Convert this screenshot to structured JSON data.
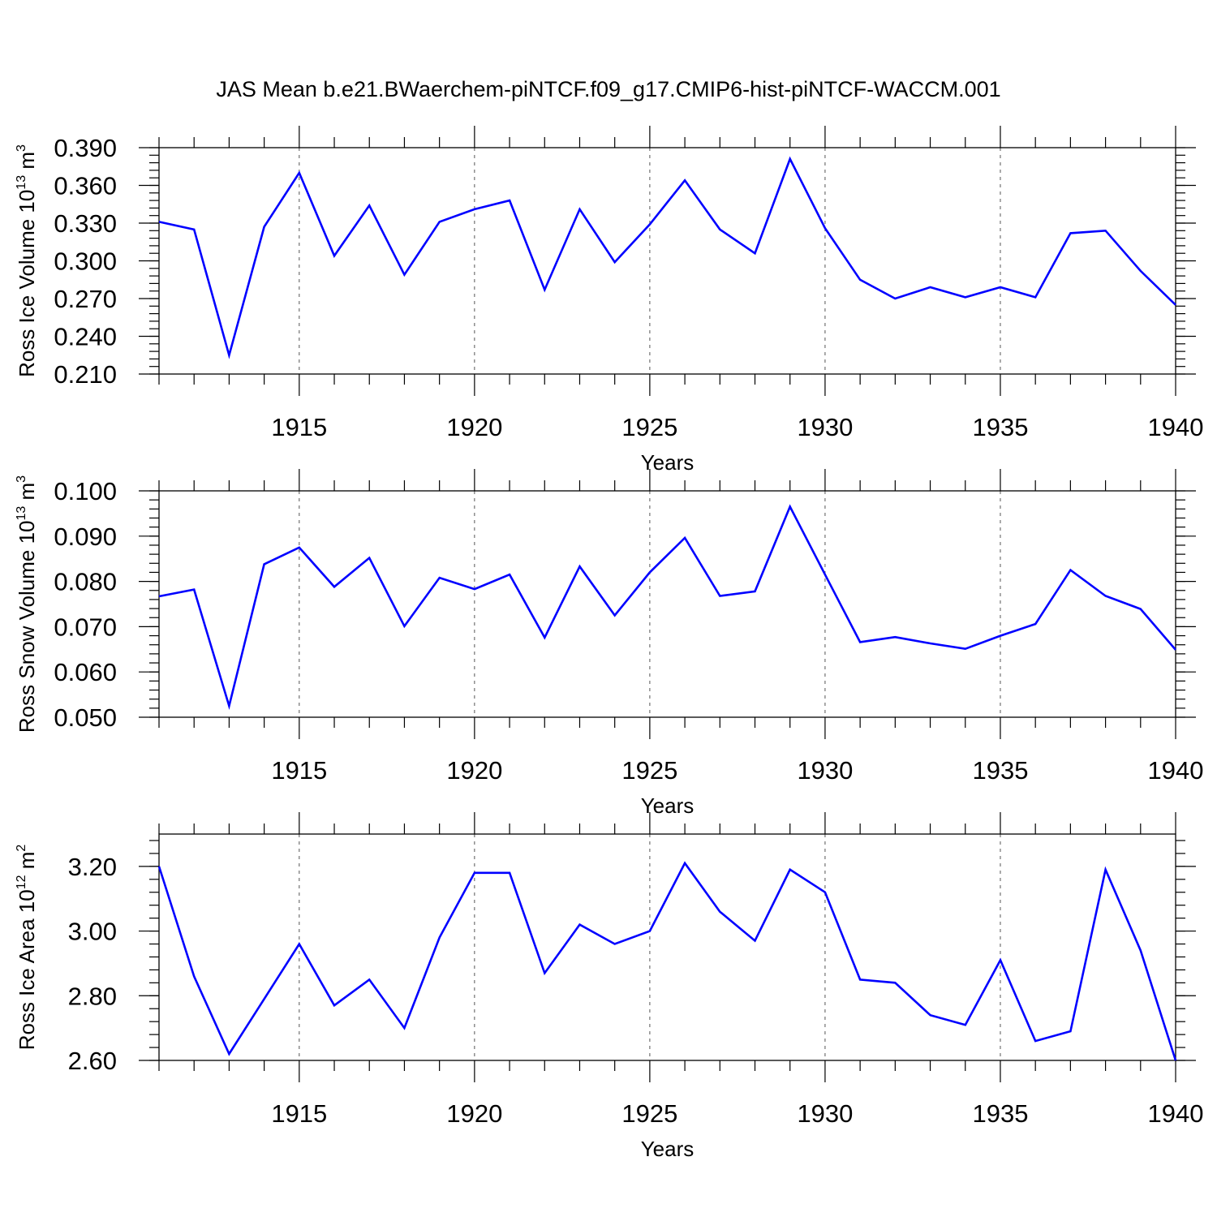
{
  "title": "JAS Mean b.e21.BWaerchem-piNTCF.f09_g17.CMIP6-hist-piNTCF-WACCM.001",
  "chart_data": [
    {
      "type": "line",
      "ylabel": "Ross Ice Volume 10",
      "ylabel_exp": "13",
      "ylabel_unit": " m",
      "ylabel_unit_exp": "3",
      "xlabel": "Years",
      "xlim": [
        1911,
        1940
      ],
      "ylim": [
        0.21,
        0.39
      ],
      "yticks": [
        0.21,
        0.24,
        0.27,
        0.3,
        0.33,
        0.36,
        0.39
      ],
      "ytick_labels": [
        "0.210",
        "0.240",
        "0.270",
        "0.300",
        "0.330",
        "0.360",
        "0.390"
      ],
      "yminor": 0.006,
      "xticks": [
        1915,
        1920,
        1925,
        1930,
        1935,
        1940
      ],
      "xtick_labels": [
        "1915",
        "1920",
        "1925",
        "1930",
        "1935",
        "1940"
      ],
      "series_color": "#0000ff",
      "x": [
        1911,
        1912,
        1913,
        1914,
        1915,
        1916,
        1917,
        1918,
        1919,
        1920,
        1921,
        1922,
        1923,
        1924,
        1925,
        1926,
        1927,
        1928,
        1929,
        1930,
        1931,
        1932,
        1933,
        1934,
        1935,
        1936,
        1937,
        1938,
        1939,
        1940
      ],
      "values": [
        0.331,
        0.325,
        0.225,
        0.327,
        0.37,
        0.304,
        0.344,
        0.289,
        0.331,
        0.341,
        0.348,
        0.277,
        0.341,
        0.299,
        0.329,
        0.364,
        0.325,
        0.306,
        0.381,
        0.326,
        0.285,
        0.27,
        0.279,
        0.271,
        0.279,
        0.271,
        0.322,
        0.324,
        0.292,
        0.265
      ]
    },
    {
      "type": "line",
      "ylabel": "Ross Snow Volume 10",
      "ylabel_exp": "13",
      "ylabel_unit": " m",
      "ylabel_unit_exp": "3",
      "xlabel": "Years",
      "xlim": [
        1911,
        1940
      ],
      "ylim": [
        0.05,
        0.1
      ],
      "yticks": [
        0.05,
        0.06,
        0.07,
        0.08,
        0.09,
        0.1
      ],
      "ytick_labels": [
        "0.050",
        "0.060",
        "0.070",
        "0.080",
        "0.090",
        "0.100"
      ],
      "yminor": 0.002,
      "xticks": [
        1915,
        1920,
        1925,
        1930,
        1935,
        1940
      ],
      "xtick_labels": [
        "1915",
        "1920",
        "1925",
        "1930",
        "1935",
        "1940"
      ],
      "series_color": "#0000ff",
      "x": [
        1911,
        1912,
        1913,
        1914,
        1915,
        1916,
        1917,
        1918,
        1919,
        1920,
        1921,
        1922,
        1923,
        1924,
        1925,
        1926,
        1927,
        1928,
        1929,
        1930,
        1931,
        1932,
        1933,
        1934,
        1935,
        1936,
        1937,
        1938,
        1939,
        1940
      ],
      "values": [
        0.0767,
        0.0782,
        0.0525,
        0.0838,
        0.0875,
        0.0788,
        0.0852,
        0.0701,
        0.0808,
        0.0783,
        0.0815,
        0.0676,
        0.0833,
        0.0725,
        0.082,
        0.0896,
        0.0768,
        0.0778,
        0.0965,
        0.0815,
        0.0666,
        0.0677,
        0.0663,
        0.0651,
        0.068,
        0.0706,
        0.0825,
        0.0768,
        0.0739,
        0.0649
      ]
    },
    {
      "type": "line",
      "ylabel": "Ross Ice Area 10",
      "ylabel_exp": "12",
      "ylabel_unit": " m",
      "ylabel_unit_exp": "2",
      "xlabel": "Years",
      "xlim": [
        1911,
        1940
      ],
      "ylim": [
        2.6,
        3.3
      ],
      "yticks": [
        2.6,
        2.8,
        3.0,
        3.2
      ],
      "ytick_labels": [
        "2.60",
        "2.80",
        "3.00",
        "3.20"
      ],
      "yminor": 0.04,
      "xticks": [
        1915,
        1920,
        1925,
        1930,
        1935,
        1940
      ],
      "xtick_labels": [
        "1915",
        "1920",
        "1925",
        "1930",
        "1935",
        "1940"
      ],
      "series_color": "#0000ff",
      "x": [
        1911,
        1912,
        1913,
        1914,
        1915,
        1916,
        1917,
        1918,
        1919,
        1920,
        1921,
        1922,
        1923,
        1924,
        1925,
        1926,
        1927,
        1928,
        1929,
        1930,
        1931,
        1932,
        1933,
        1934,
        1935,
        1936,
        1937,
        1938,
        1939,
        1940
      ],
      "values": [
        3.2,
        2.86,
        2.62,
        2.79,
        2.96,
        2.77,
        2.85,
        2.7,
        2.98,
        3.18,
        3.18,
        2.87,
        3.02,
        2.96,
        3.0,
        3.21,
        3.06,
        2.97,
        3.19,
        3.12,
        2.85,
        2.84,
        2.74,
        2.71,
        2.91,
        2.66,
        2.69,
        3.19,
        2.94,
        2.6
      ]
    }
  ]
}
